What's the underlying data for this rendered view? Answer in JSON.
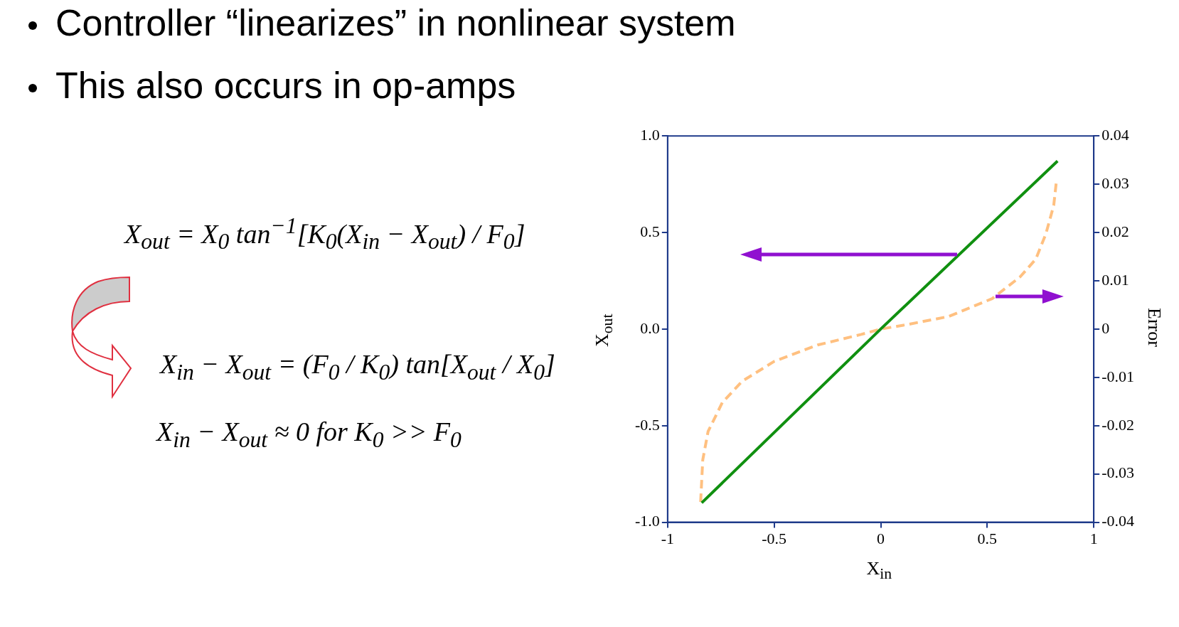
{
  "chart_data": {
    "type": "line",
    "title": "Controller “linearizes” in nonlinear system",
    "subtitle": "This also occurs in op-amps",
    "xlabel": "X$_{in}$",
    "ylabel": "X$_{out}$",
    "y2label": "Error",
    "annotations": [
      "X$_{out}$ = X$_{0}$ tan$^{−1}$[K$_{0}$(X$_{in}$ − X$_{out}$) / F$_{0}$]",
      "X$_{in}$ − X$_{out}$ = (F$_{0}$ / K$_{0}$) tan[X$_{out}$ / X$_{0}$]",
      "X$_{in}$ − X$_{out}$ ≈ 0 for K$_{0}$ >> F$_{0}$"
    ],
    "series": [
      {
        "color": "#109010",
        "line_style": "solid",
        "x": [
          -0.84,
          0,
          0.83
        ],
        "values": [
          -0.9,
          0,
          0.87
        ]
      },
      {
        "color": "#ffc080",
        "line_style": "dashed",
        "axis": "y2",
        "x": [
          -0.845,
          -0.835,
          -0.81,
          -0.743,
          -0.65,
          -0.5,
          -0.296,
          -0.091,
          0,
          0.132,
          0.318,
          0.523,
          0.654,
          0.728,
          0.775,
          0.812,
          0.825
        ],
        "values": [
          -0.0358,
          -0.0271,
          -0.0212,
          -0.0152,
          -0.0108,
          -0.0067,
          -0.0033,
          -0.0011,
          0,
          0.001,
          0.0026,
          0.0063,
          0.0108,
          0.0145,
          0.0197,
          0.0256,
          0.0308
        ]
      }
    ],
    "xlim": [
      -1,
      1
    ],
    "xticks": [
      -1,
      -0.5,
      0,
      0.5,
      1
    ],
    "ylim": [
      -1,
      1
    ],
    "yticks": [
      {
        "value": -1,
        "label": "-1.0"
      },
      -0.5,
      {
        "value": 0,
        "label": "0.0"
      },
      0.5,
      {
        "value": 1,
        "label": "1.0"
      }
    ],
    "y2lim": [
      -0.04,
      0.04
    ],
    "y2ticks": [
      -0.04,
      -0.03,
      -0.02,
      -0.01,
      0,
      0.01,
      0.02,
      0.03,
      0.04
    ],
    "grid": false,
    "legend": false,
    "marker": "none"
  }
}
